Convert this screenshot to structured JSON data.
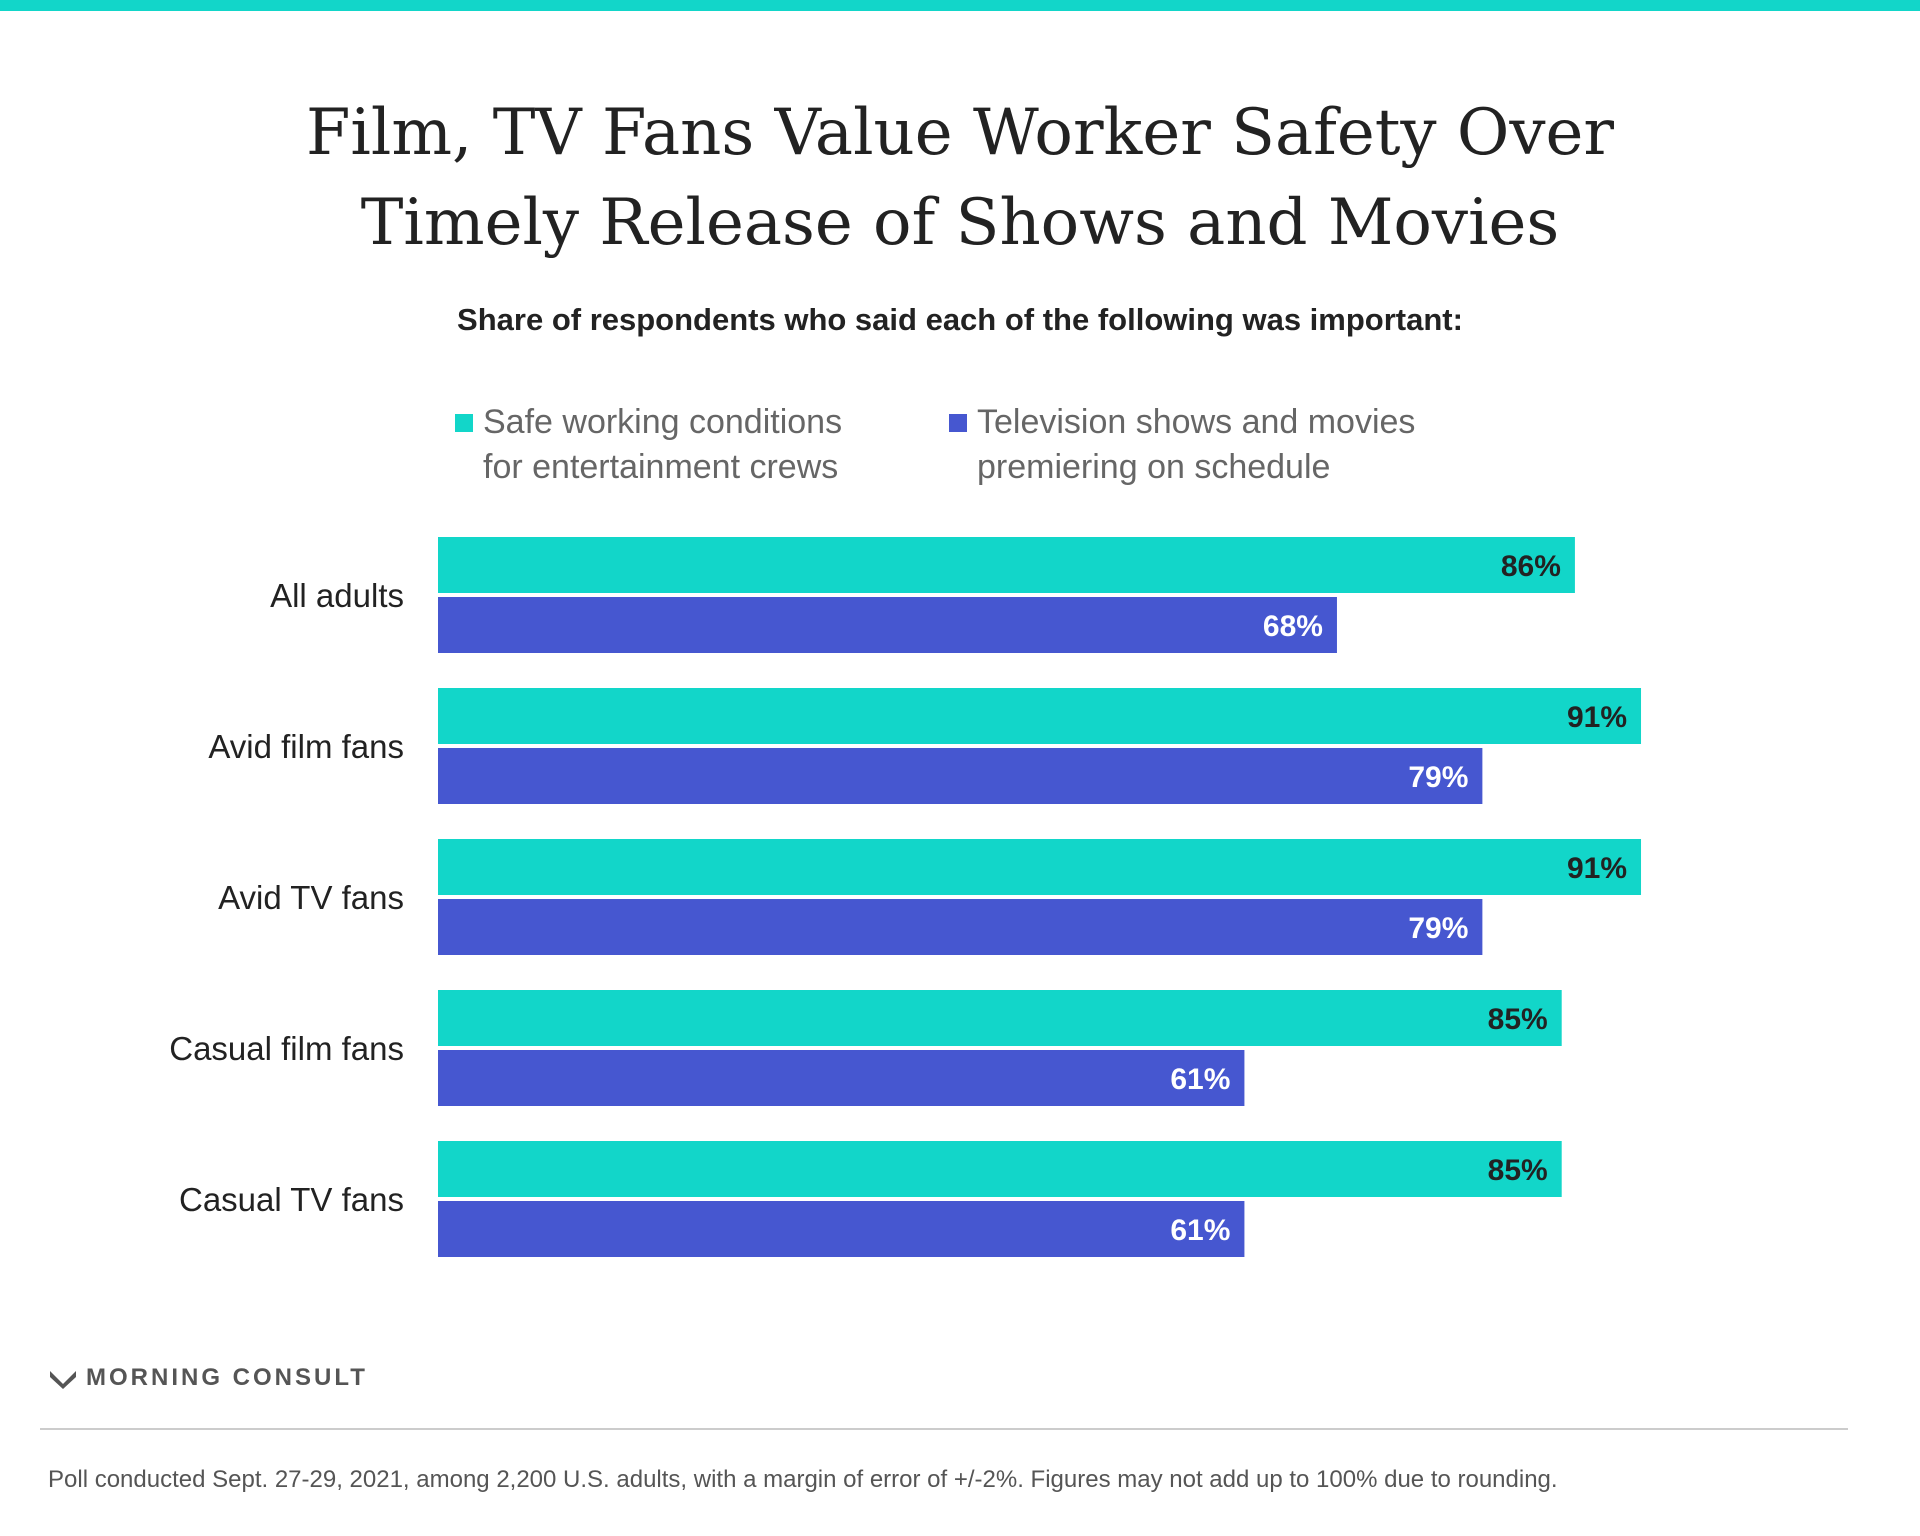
{
  "colors": {
    "accent": "#12d6c9",
    "safety": "#12d6c9",
    "schedule": "#4657d0",
    "title": "#222222",
    "muted": "#666666",
    "label_dark": "#222222",
    "label_light": "#ffffff"
  },
  "header": {
    "title_line1": "Film, TV Fans Value Worker Safety Over",
    "title_line2": "Timely Release of Shows and Movies",
    "subtitle": "Share of respondents who said each of the following was important:"
  },
  "legend": {
    "safety_line1": "Safe working conditions",
    "safety_line2": "for entertainment crews",
    "schedule_line1": "Television shows and movies",
    "schedule_line2": "premiering on schedule"
  },
  "chart_data": {
    "type": "bar",
    "orientation": "horizontal",
    "title": "Film, TV Fans Value Worker Safety Over Timely Release of Shows and Movies",
    "subtitle": "Share of respondents who said each of the following was important:",
    "categories": [
      "All adults",
      "Avid film fans",
      "Avid TV fans",
      "Casual film fans",
      "Casual TV fans"
    ],
    "series": [
      {
        "name": "Safe working conditions for entertainment crews",
        "values": [
          86,
          91,
          91,
          85,
          85
        ]
      },
      {
        "name": "Television shows and movies premiering on schedule",
        "values": [
          68,
          79,
          79,
          61,
          61
        ]
      }
    ],
    "value_suffix": "%",
    "xlim": [
      0,
      100
    ],
    "grid": false,
    "legend": "top"
  },
  "branding": {
    "name": "MORNING CONSULT",
    "icon": "morning-consult-logo-icon"
  },
  "footer": {
    "note": "Poll conducted Sept. 27-29, 2021, among 2,200 U.S. adults, with a margin of error of +/-2%. Figures may not add up to 100% due to rounding."
  }
}
